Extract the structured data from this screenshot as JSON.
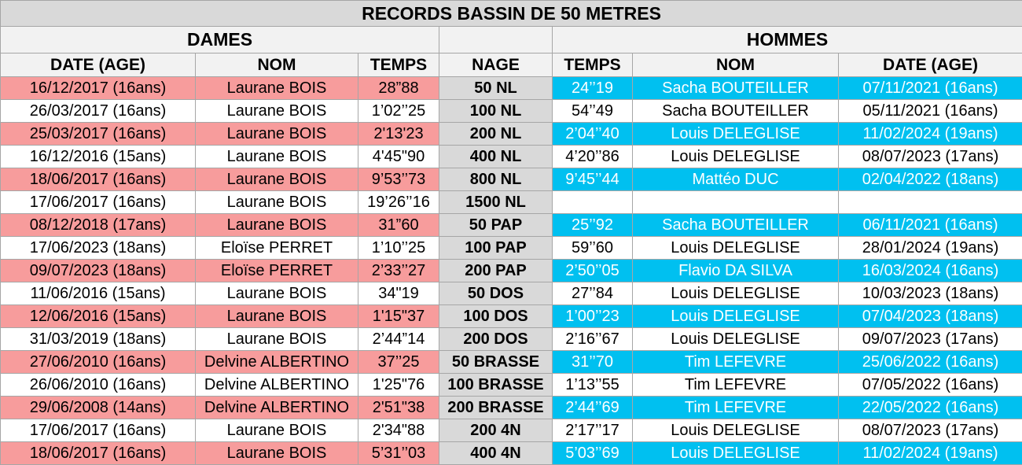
{
  "title": "RECORDS BASSIN DE 50 METRES",
  "sections": {
    "dames": "DAMES",
    "hommes": "HOMMES"
  },
  "columns": [
    "DATE (AGE)",
    "NOM",
    "TEMPS",
    "NAGE",
    "TEMPS",
    "NOM",
    "DATE (AGE)"
  ],
  "rows": [
    {
      "dames": [
        "16/12/2017 (16ans)",
        "Laurane BOIS",
        "28”88"
      ],
      "nage": "50 NL",
      "hommes": [
        "24’’19",
        "Sacha BOUTEILLER",
        "07/11/2021 (16ans)"
      ]
    },
    {
      "dames": [
        "26/03/2017 (16ans)",
        "Laurane BOIS",
        "1’02’’25"
      ],
      "nage": "100 NL",
      "hommes": [
        "54’’49",
        "Sacha BOUTEILLER",
        "05/11/2021 (16ans)"
      ]
    },
    {
      "dames": [
        "25/03/2017 (16ans)",
        "Laurane BOIS",
        "2'13'23"
      ],
      "nage": "200 NL",
      "hommes": [
        "2’04’’40",
        "Louis DELEGLISE",
        "11/02/2024 (19ans)"
      ]
    },
    {
      "dames": [
        "16/12/2016 (15ans)",
        "Laurane BOIS",
        "4'45\"90"
      ],
      "nage": "400 NL",
      "hommes": [
        "4’20’’86",
        "Louis DELEGLISE",
        "08/07/2023 (17ans)"
      ]
    },
    {
      "dames": [
        "18/06/2017 (16ans)",
        "Laurane BOIS",
        "9’53’’73"
      ],
      "nage": "800 NL",
      "hommes": [
        "9’45’’44",
        "Mattéo DUC",
        "02/04/2022 (18ans)"
      ]
    },
    {
      "dames": [
        "17/06/2017 (16ans)",
        "Laurane BOIS",
        "19’26’’16"
      ],
      "nage": "1500 NL"
    },
    {
      "dames": [
        "08/12/2018 (17ans)",
        "Laurane BOIS",
        "31”60"
      ],
      "nage": "50 PAP",
      "hommes": [
        "25’’92",
        "Sacha BOUTEILLER",
        "06/11/2021 (16ans)"
      ]
    },
    {
      "dames": [
        "17/06/2023 (18ans)",
        "Eloïse PERRET",
        "1’10’’25"
      ],
      "nage": "100 PAP",
      "hommes": [
        "59’’60",
        "Louis DELEGLISE",
        "28/01/2024 (19ans)"
      ]
    },
    {
      "dames": [
        "09/07/2023 (18ans)",
        "Eloïse PERRET",
        "2’33’’27"
      ],
      "nage": "200 PAP",
      "hommes": [
        "2’50’’05",
        "Flavio DA SILVA",
        "16/03/2024 (16ans)"
      ]
    },
    {
      "dames": [
        "11/06/2016 (15ans)",
        "Laurane BOIS",
        "34\"19"
      ],
      "nage": "50 DOS",
      "hommes": [
        "27’’84",
        "Louis DELEGLISE",
        "10/03/2023 (18ans)"
      ]
    },
    {
      "dames": [
        "12/06/2016 (15ans)",
        "Laurane BOIS",
        "1'15\"37"
      ],
      "nage": "100 DOS",
      "hommes": [
        "1’00’’23",
        "Louis DELEGLISE",
        "07/04/2023 (18ans)"
      ]
    },
    {
      "dames": [
        "31/03/2019 (18ans)",
        "Laurane BOIS",
        "2’44”14"
      ],
      "nage": "200 DOS",
      "hommes": [
        "2’16’’67",
        "Louis DELEGLISE",
        "09/07/2023 (17ans)"
      ]
    },
    {
      "dames": [
        "27/06/2010 (16ans)",
        "Delvine ALBERTINO",
        "37’’25"
      ],
      "nage": "50 BRASSE",
      "hommes": [
        "31’’70",
        "Tim LEFEVRE",
        "25/06/2022 (16ans)"
      ]
    },
    {
      "dames": [
        "26/06/2010 (16ans)",
        "Delvine ALBERTINO",
        "1'25\"76"
      ],
      "nage": "100 BRASSE",
      "hommes": [
        "1’13’’55",
        "Tim LEFEVRE",
        "07/05/2022 (16ans)"
      ]
    },
    {
      "dames": [
        "29/06/2008 (14ans)",
        "Delvine ALBERTINO",
        "2'51\"38"
      ],
      "nage": "200 BRASSE",
      "hommes": [
        "2’44’’69",
        "Tim LEFEVRE",
        "22/05/2022 (16ans)"
      ]
    },
    {
      "dames": [
        "17/06/2017 (16ans)",
        "Laurane BOIS",
        "2'34\"88"
      ],
      "nage": "200 4N",
      "hommes": [
        "2’17’’17",
        "Louis DELEGLISE",
        "08/07/2023 (17ans)"
      ]
    },
    {
      "dames": [
        "18/06/2017 (16ans)",
        "Laurane BOIS",
        "5’31’’03"
      ],
      "nage": "400 4N",
      "hommes": [
        "5’03’’69",
        "Louis DELEGLISE",
        "11/02/2024 (19ans)"
      ]
    }
  ]
}
